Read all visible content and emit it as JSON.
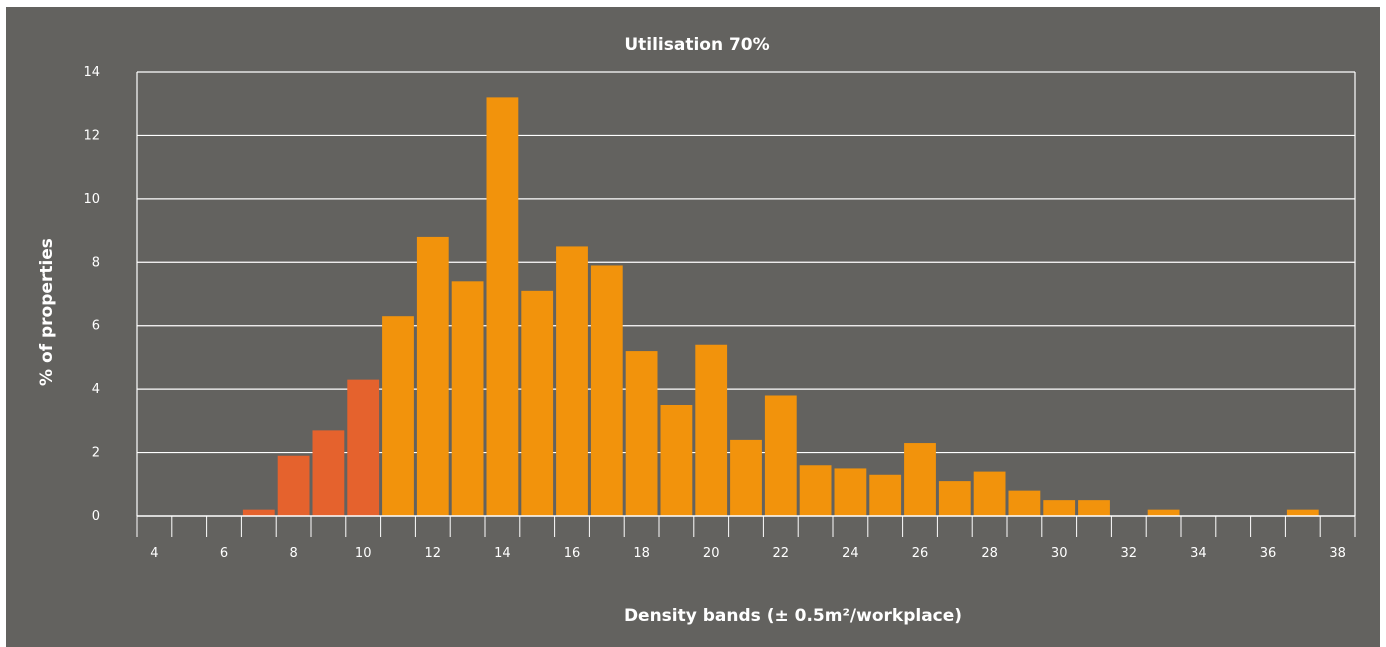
{
  "chart_data": {
    "type": "bar",
    "title": "Utilisation 70%",
    "xlabel": "Density bands (± 0.5m²/workplace)",
    "ylabel": "% of properties",
    "ylim": [
      0,
      14
    ],
    "yticks": [
      0,
      2,
      4,
      6,
      8,
      10,
      12,
      14
    ],
    "xlim": [
      3.5,
      38.5
    ],
    "xticks": [
      4,
      6,
      8,
      10,
      12,
      14,
      16,
      18,
      20,
      22,
      24,
      26,
      28,
      30,
      32,
      34,
      36,
      38
    ],
    "grid": true,
    "categories": [
      4,
      5,
      6,
      7,
      8,
      9,
      10,
      11,
      12,
      13,
      14,
      15,
      16,
      17,
      18,
      19,
      20,
      21,
      22,
      23,
      24,
      25,
      26,
      27,
      28,
      29,
      30,
      31,
      32,
      33,
      34,
      35,
      36,
      37
    ],
    "values": [
      0,
      0,
      0,
      0.2,
      1.9,
      2.7,
      4.3,
      6.3,
      8.8,
      7.4,
      13.2,
      7.1,
      8.5,
      7.9,
      5.2,
      3.5,
      5.4,
      2.4,
      3.8,
      1.6,
      1.5,
      1.3,
      2.3,
      1.1,
      1.4,
      0.8,
      0.5,
      0.5,
      0,
      0.2,
      0,
      0,
      0,
      0.2
    ],
    "colors": {
      "highlight": "#e5622d",
      "main": "#f2930c",
      "background": "#63625f",
      "lines": "#ffffff"
    },
    "highlight_max_band": 10
  }
}
